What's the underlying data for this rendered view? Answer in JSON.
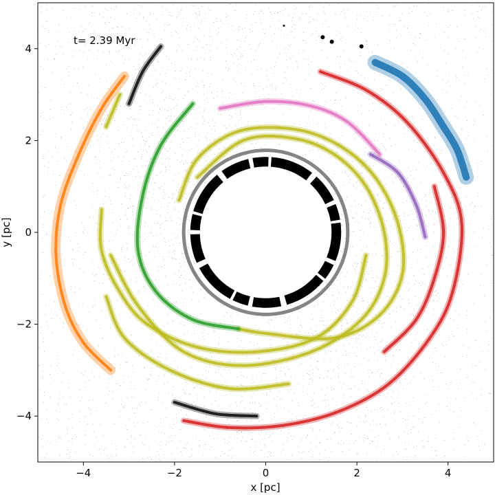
{
  "chart_data": {
    "type": "scatter",
    "annotation": "t= 2.39 Myr",
    "xlabel": "x [pc]",
    "ylabel": "y [pc]",
    "xlim": [
      -5,
      5
    ],
    "ylim": [
      -5,
      5
    ],
    "xticks": [
      -4,
      -2,
      0,
      2,
      4
    ],
    "yticks": [
      -4,
      -2,
      0,
      2,
      4
    ],
    "xtick_labels": [
      "−4",
      "−2",
      "0",
      "2",
      "4"
    ],
    "ytick_labels": [
      "−4",
      "−2",
      "0",
      "2",
      "4"
    ],
    "grid": false,
    "background_particles": {
      "color": "#555555",
      "inner_hole_radius": 1.4
    },
    "inner_ring": {
      "color": "#000000",
      "radius": 1.55
    },
    "streams": [
      {
        "color": "#d62728",
        "label": "red-stream-outer",
        "points": [
          [
            1.2,
            3.5
          ],
          [
            2.2,
            3.1
          ],
          [
            3.1,
            2.4
          ],
          [
            3.9,
            1.3
          ],
          [
            4.3,
            0.2
          ],
          [
            4.1,
            -1.3
          ],
          [
            3.6,
            -2.3
          ],
          [
            2.7,
            -3.3
          ],
          [
            1.6,
            -3.9
          ],
          [
            0.4,
            -4.2
          ],
          [
            -0.8,
            -4.25
          ],
          [
            -1.8,
            -4.1
          ]
        ]
      },
      {
        "color": "#d62728",
        "label": "red-stream-mid",
        "points": [
          [
            3.7,
            1.0
          ],
          [
            3.9,
            0.0
          ],
          [
            3.7,
            -1.0
          ],
          [
            3.3,
            -1.9
          ],
          [
            2.6,
            -2.6
          ]
        ]
      },
      {
        "color": "#1f77b4",
        "label": "blue-stream",
        "points": [
          [
            2.4,
            3.7
          ],
          [
            3.0,
            3.4
          ],
          [
            3.5,
            2.9
          ],
          [
            3.9,
            2.3
          ],
          [
            4.2,
            1.8
          ],
          [
            4.4,
            1.2
          ]
        ]
      },
      {
        "color": "#ff7f0e",
        "label": "orange-stream",
        "points": [
          [
            -3.1,
            3.4
          ],
          [
            -3.6,
            2.7
          ],
          [
            -4.1,
            1.7
          ],
          [
            -4.5,
            0.6
          ],
          [
            -4.6,
            -0.5
          ],
          [
            -4.4,
            -1.6
          ],
          [
            -4.0,
            -2.4
          ],
          [
            -3.4,
            -3.0
          ]
        ]
      },
      {
        "color": "#e377c2",
        "label": "pink-stream",
        "points": [
          [
            -1.0,
            2.7
          ],
          [
            0.0,
            2.85
          ],
          [
            1.0,
            2.75
          ],
          [
            1.8,
            2.4
          ],
          [
            2.5,
            1.7
          ]
        ]
      },
      {
        "color": "#9467bd",
        "label": "purple-stream",
        "points": [
          [
            2.3,
            1.7
          ],
          [
            2.9,
            1.3
          ],
          [
            3.3,
            0.6
          ],
          [
            3.5,
            -0.1
          ]
        ]
      },
      {
        "color": "#bcbd22",
        "label": "olive-stream-1",
        "points": [
          [
            -1.9,
            0.7
          ],
          [
            -1.5,
            1.6
          ],
          [
            -0.6,
            2.2
          ],
          [
            0.6,
            2.25
          ],
          [
            1.6,
            1.9
          ],
          [
            2.4,
            1.2
          ],
          [
            2.9,
            0.2
          ],
          [
            3.0,
            -0.9
          ],
          [
            2.5,
            -1.8
          ],
          [
            1.5,
            -2.3
          ],
          [
            0.0,
            -2.2
          ],
          [
            -0.6,
            -2.1
          ]
        ]
      },
      {
        "color": "#bcbd22",
        "label": "olive-stream-2",
        "points": [
          [
            -1.5,
            1.2
          ],
          [
            -0.5,
            2.0
          ],
          [
            0.6,
            2.05
          ],
          [
            1.5,
            1.7
          ],
          [
            2.2,
            1.0
          ],
          [
            2.6,
            0.0
          ],
          [
            2.6,
            -1.0
          ],
          [
            2.1,
            -1.9
          ],
          [
            1.0,
            -2.6
          ],
          [
            -0.5,
            -2.9
          ],
          [
            -1.8,
            -2.6
          ],
          [
            -2.8,
            -1.6
          ],
          [
            -3.4,
            -0.5
          ]
        ]
      },
      {
        "color": "#bcbd22",
        "label": "olive-stream-3",
        "points": [
          [
            2.2,
            -0.5
          ],
          [
            1.9,
            -1.5
          ],
          [
            1.1,
            -2.3
          ],
          [
            -0.2,
            -2.6
          ],
          [
            -1.5,
            -2.5
          ],
          [
            -2.6,
            -2.0
          ],
          [
            -3.2,
            -1.3
          ],
          [
            -3.6,
            -0.4
          ],
          [
            -3.6,
            0.5
          ]
        ]
      },
      {
        "color": "#bcbd22",
        "label": "olive-stream-4",
        "points": [
          [
            0.5,
            -3.3
          ],
          [
            -0.8,
            -3.4
          ],
          [
            -2.1,
            -3.0
          ],
          [
            -3.1,
            -2.3
          ],
          [
            -3.5,
            -1.4
          ]
        ]
      },
      {
        "color": "#bcbd22",
        "label": "olive-stream-5",
        "points": [
          [
            -3.2,
            3.0
          ],
          [
            -3.5,
            2.3
          ]
        ]
      },
      {
        "color": "#2ca02c",
        "label": "green-stream",
        "points": [
          [
            -1.6,
            2.8
          ],
          [
            -2.3,
            1.9
          ],
          [
            -2.7,
            0.8
          ],
          [
            -2.8,
            -0.4
          ],
          [
            -2.4,
            -1.3
          ],
          [
            -1.6,
            -1.9
          ],
          [
            -0.6,
            -2.1
          ]
        ]
      },
      {
        "color": "#111111",
        "label": "black-stream-upper",
        "points": [
          [
            -2.3,
            4.05
          ],
          [
            -2.7,
            3.5
          ],
          [
            -3.0,
            2.8
          ]
        ]
      },
      {
        "color": "#111111",
        "label": "black-stream-lower",
        "points": [
          [
            -2.0,
            -3.7
          ],
          [
            -1.1,
            -3.95
          ],
          [
            -0.2,
            -4.0
          ]
        ]
      }
    ],
    "dark_clumps": [
      [
        1.25,
        4.25
      ],
      [
        1.45,
        4.15
      ],
      [
        2.1,
        4.05
      ],
      [
        0.4,
        4.5
      ]
    ]
  }
}
